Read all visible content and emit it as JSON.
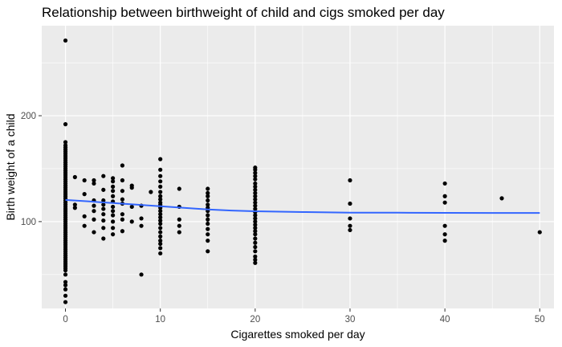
{
  "chart_data": {
    "type": "scatter",
    "title": "Relationship between birthweight of child and cigs smoked per day",
    "xlabel": "Cigarettes smoked per day",
    "ylabel": "Birth weight of a child",
    "xlim": [
      -2.5,
      51.5
    ],
    "ylim": [
      18,
      285
    ],
    "x_ticks": [
      0,
      10,
      20,
      30,
      40,
      50
    ],
    "y_ticks": [
      100,
      200
    ],
    "x_tick_labels": [
      "0",
      "10",
      "20",
      "30",
      "40",
      "50"
    ],
    "y_tick_labels": [
      "100",
      "200"
    ],
    "grid": true,
    "point_color": "#000000",
    "smooth_color": "#3366ff",
    "panel_background": "#ebebeb",
    "points": [
      [
        0,
        271
      ],
      [
        0,
        192
      ],
      [
        0,
        175
      ],
      [
        0,
        172
      ],
      [
        0,
        170
      ],
      [
        0,
        168
      ],
      [
        0,
        166
      ],
      [
        0,
        164
      ],
      [
        0,
        162
      ],
      [
        0,
        160
      ],
      [
        0,
        158
      ],
      [
        0,
        156
      ],
      [
        0,
        154
      ],
      [
        0,
        152
      ],
      [
        0,
        150
      ],
      [
        0,
        148
      ],
      [
        0,
        146
      ],
      [
        0,
        144
      ],
      [
        0,
        142
      ],
      [
        0,
        140
      ],
      [
        0,
        138
      ],
      [
        0,
        136
      ],
      [
        0,
        134
      ],
      [
        0,
        132
      ],
      [
        0,
        130
      ],
      [
        0,
        128
      ],
      [
        0,
        126
      ],
      [
        0,
        124
      ],
      [
        0,
        122
      ],
      [
        0,
        120
      ],
      [
        0,
        118
      ],
      [
        0,
        116
      ],
      [
        0,
        114
      ],
      [
        0,
        112
      ],
      [
        0,
        110
      ],
      [
        0,
        108
      ],
      [
        0,
        106
      ],
      [
        0,
        104
      ],
      [
        0,
        102
      ],
      [
        0,
        100
      ],
      [
        0,
        98
      ],
      [
        0,
        96
      ],
      [
        0,
        94
      ],
      [
        0,
        92
      ],
      [
        0,
        90
      ],
      [
        0,
        88
      ],
      [
        0,
        86
      ],
      [
        0,
        84
      ],
      [
        0,
        82
      ],
      [
        0,
        80
      ],
      [
        0,
        78
      ],
      [
        0,
        76
      ],
      [
        0,
        74
      ],
      [
        0,
        72
      ],
      [
        0,
        70
      ],
      [
        0,
        68
      ],
      [
        0,
        66
      ],
      [
        0,
        64
      ],
      [
        0,
        62
      ],
      [
        0,
        60
      ],
      [
        0,
        58
      ],
      [
        0,
        56
      ],
      [
        0,
        54
      ],
      [
        0,
        50
      ],
      [
        0,
        43
      ],
      [
        0,
        40
      ],
      [
        0,
        36
      ],
      [
        0,
        30
      ],
      [
        0,
        24
      ],
      [
        1,
        142
      ],
      [
        1,
        116
      ],
      [
        1,
        113
      ],
      [
        2,
        139
      ],
      [
        2,
        126
      ],
      [
        2,
        105
      ],
      [
        2,
        96
      ],
      [
        3,
        139
      ],
      [
        3,
        136
      ],
      [
        3,
        120
      ],
      [
        3,
        115
      ],
      [
        3,
        110
      ],
      [
        3,
        102
      ],
      [
        3,
        90
      ],
      [
        4,
        143
      ],
      [
        4,
        130
      ],
      [
        4,
        120
      ],
      [
        4,
        116
      ],
      [
        4,
        112
      ],
      [
        4,
        107
      ],
      [
        4,
        101
      ],
      [
        4,
        94
      ],
      [
        4,
        84
      ],
      [
        5,
        141
      ],
      [
        5,
        138
      ],
      [
        5,
        133
      ],
      [
        5,
        129
      ],
      [
        5,
        124
      ],
      [
        5,
        119
      ],
      [
        5,
        114
      ],
      [
        5,
        110
      ],
      [
        5,
        106
      ],
      [
        5,
        100
      ],
      [
        5,
        94
      ],
      [
        5,
        88
      ],
      [
        6,
        153
      ],
      [
        6,
        139
      ],
      [
        6,
        129
      ],
      [
        6,
        121
      ],
      [
        6,
        117
      ],
      [
        6,
        107
      ],
      [
        6,
        102
      ],
      [
        6,
        91
      ],
      [
        7,
        134
      ],
      [
        7,
        132
      ],
      [
        7,
        114
      ],
      [
        7,
        100
      ],
      [
        8,
        115
      ],
      [
        8,
        103
      ],
      [
        8,
        96
      ],
      [
        8,
        50
      ],
      [
        9,
        128
      ],
      [
        10,
        159
      ],
      [
        10,
        149
      ],
      [
        10,
        143
      ],
      [
        10,
        138
      ],
      [
        10,
        133
      ],
      [
        10,
        128
      ],
      [
        10,
        124
      ],
      [
        10,
        121
      ],
      [
        10,
        118
      ],
      [
        10,
        116
      ],
      [
        10,
        113
      ],
      [
        10,
        110
      ],
      [
        10,
        107
      ],
      [
        10,
        104
      ],
      [
        10,
        101
      ],
      [
        10,
        98
      ],
      [
        10,
        94
      ],
      [
        10,
        90
      ],
      [
        10,
        86
      ],
      [
        10,
        82
      ],
      [
        10,
        79
      ],
      [
        10,
        75
      ],
      [
        10,
        70
      ],
      [
        12,
        131
      ],
      [
        12,
        114
      ],
      [
        12,
        102
      ],
      [
        12,
        96
      ],
      [
        12,
        90
      ],
      [
        15,
        131
      ],
      [
        15,
        127
      ],
      [
        15,
        124
      ],
      [
        15,
        120
      ],
      [
        15,
        116
      ],
      [
        15,
        113
      ],
      [
        15,
        110
      ],
      [
        15,
        106
      ],
      [
        15,
        102
      ],
      [
        15,
        98
      ],
      [
        15,
        93
      ],
      [
        15,
        88
      ],
      [
        15,
        82
      ],
      [
        15,
        72
      ],
      [
        20,
        151
      ],
      [
        20,
        149
      ],
      [
        20,
        146
      ],
      [
        20,
        143
      ],
      [
        20,
        140
      ],
      [
        20,
        136
      ],
      [
        20,
        133
      ],
      [
        20,
        130
      ],
      [
        20,
        127
      ],
      [
        20,
        124
      ],
      [
        20,
        121
      ],
      [
        20,
        118
      ],
      [
        20,
        115
      ],
      [
        20,
        112
      ],
      [
        20,
        109
      ],
      [
        20,
        106
      ],
      [
        20,
        103
      ],
      [
        20,
        100
      ],
      [
        20,
        97
      ],
      [
        20,
        94
      ],
      [
        20,
        91
      ],
      [
        20,
        88
      ],
      [
        20,
        84
      ],
      [
        20,
        80
      ],
      [
        20,
        76
      ],
      [
        20,
        72
      ],
      [
        20,
        67
      ],
      [
        20,
        64
      ],
      [
        20,
        61
      ],
      [
        30,
        139
      ],
      [
        30,
        117
      ],
      [
        30,
        103
      ],
      [
        30,
        96
      ],
      [
        30,
        92
      ],
      [
        40,
        136
      ],
      [
        40,
        124
      ],
      [
        40,
        118
      ],
      [
        40,
        96
      ],
      [
        40,
        88
      ],
      [
        40,
        82
      ],
      [
        46,
        122
      ],
      [
        50,
        90
      ]
    ],
    "smooth": [
      [
        0,
        120.5
      ],
      [
        2.5,
        119
      ],
      [
        5,
        117.5
      ],
      [
        7.5,
        116
      ],
      [
        10,
        114.5
      ],
      [
        12.5,
        113
      ],
      [
        15,
        111.5
      ],
      [
        17.5,
        110.5
      ],
      [
        20,
        109.8
      ],
      [
        25,
        109
      ],
      [
        30,
        108.5
      ],
      [
        35,
        108.4
      ],
      [
        40,
        108.3
      ],
      [
        45,
        108.2
      ],
      [
        50,
        108.2
      ]
    ]
  }
}
